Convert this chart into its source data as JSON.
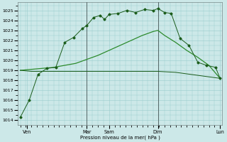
{
  "xlabel": "Pression niveau de la mer( hPa )",
  "background_color": "#cce8e8",
  "grid_color": "#99cccc",
  "line_color1": "#1a5c1a",
  "line_color2": "#2d8b2d",
  "line_color3": "#1a5c1a",
  "ylim": [
    1013.5,
    1025.8
  ],
  "yticks": [
    1014,
    1015,
    1016,
    1017,
    1018,
    1019,
    1020,
    1021,
    1022,
    1023,
    1024,
    1025
  ],
  "xlim": [
    -0.1,
    9.1
  ],
  "xtick_positions": [
    0.3,
    3.0,
    4.0,
    6.2,
    9.0
  ],
  "xtick_labels": [
    "Ven",
    "Mar",
    "Sam",
    "Dim",
    "Lun"
  ],
  "vline_positions": [
    3.0,
    6.2
  ],
  "series1_x": [
    0.0,
    0.4,
    0.8,
    1.2,
    1.6,
    2.0,
    2.4,
    2.8,
    3.0,
    3.3,
    3.6,
    3.8,
    4.0,
    4.4,
    4.8,
    5.2,
    5.6,
    6.0,
    6.2,
    6.5,
    6.8,
    7.2,
    7.6,
    8.0,
    8.4,
    8.8,
    9.0
  ],
  "series1_y": [
    1014.3,
    1016.0,
    1018.6,
    1019.2,
    1019.3,
    1021.8,
    1022.3,
    1023.2,
    1023.5,
    1024.3,
    1024.5,
    1024.1,
    1024.6,
    1024.7,
    1025.0,
    1024.8,
    1025.1,
    1025.0,
    1025.2,
    1024.8,
    1024.7,
    1022.2,
    1021.5,
    1019.8,
    1019.5,
    1019.3,
    1018.2
  ],
  "series2_x": [
    0.0,
    0.5,
    1.0,
    1.5,
    2.0,
    2.5,
    3.0,
    3.5,
    4.0,
    4.5,
    5.0,
    5.5,
    6.0,
    6.2,
    6.5,
    7.0,
    7.5,
    8.0,
    8.5,
    9.0
  ],
  "series2_y": [
    1019.0,
    1019.1,
    1019.2,
    1019.3,
    1019.5,
    1019.7,
    1020.1,
    1020.5,
    1021.0,
    1021.5,
    1022.0,
    1022.5,
    1022.9,
    1023.0,
    1022.5,
    1021.8,
    1021.0,
    1020.3,
    1019.5,
    1018.2
  ],
  "series3_x": [
    0.0,
    0.5,
    1.0,
    1.5,
    2.0,
    3.0,
    4.0,
    5.0,
    6.0,
    6.2,
    7.0,
    8.0,
    9.0
  ],
  "series3_y": [
    1019.0,
    1018.9,
    1018.9,
    1018.9,
    1018.9,
    1018.9,
    1018.9,
    1018.9,
    1018.9,
    1018.9,
    1018.8,
    1018.5,
    1018.2
  ]
}
